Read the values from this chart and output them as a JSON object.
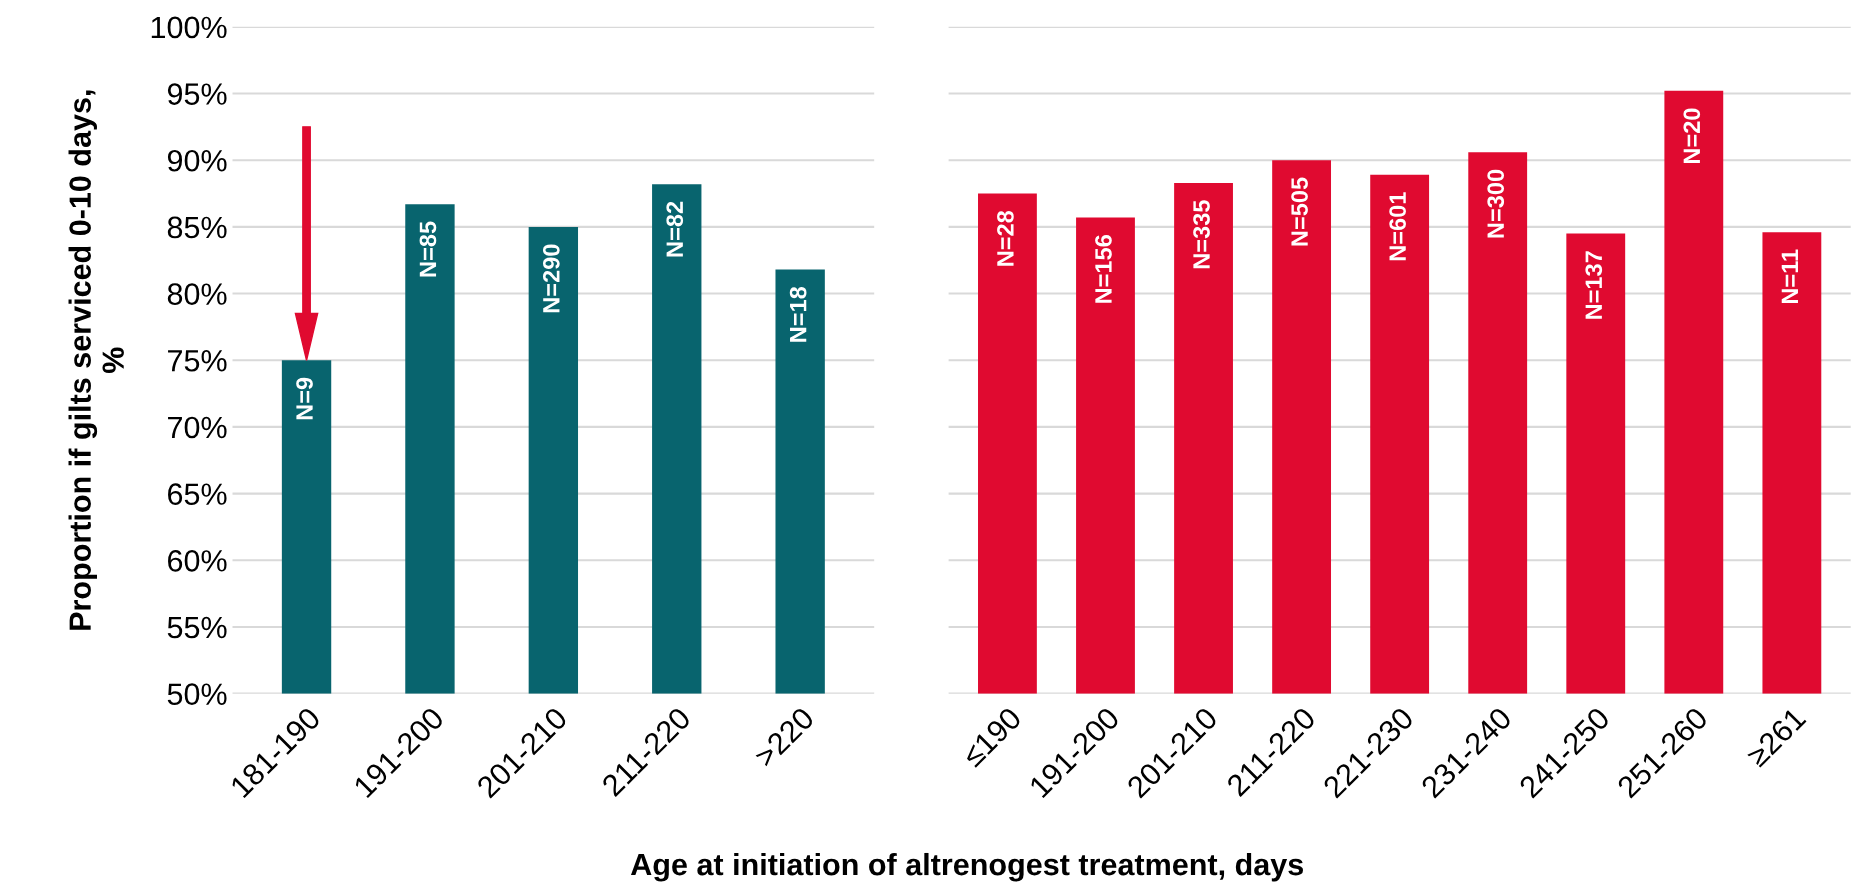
{
  "chart_data": [
    {
      "type": "bar",
      "ylabel": "Proportion if gilts serviced 0-10 days,\n%",
      "xlabel": "Age at initiation of altrenogest treatment, days",
      "categories": [
        "181-190",
        "191-200",
        "201-210",
        "211-220",
        ">220"
      ],
      "values": [
        75.0,
        86.7,
        85.0,
        88.2,
        81.8
      ],
      "color": "#08646e",
      "annotations": [
        {
          "text": "N=9",
          "x": "181-190",
          "y": 75.0
        },
        {
          "text": "N=85",
          "x": "191-200",
          "y": 86.7
        },
        {
          "text": "N=290",
          "x": "201-210",
          "y": 85.0
        },
        {
          "text": "N=82",
          "x": "211-220",
          "y": 88.2
        },
        {
          "text": "N=18",
          "x": ">220",
          "y": 81.8
        }
      ],
      "ylim": [
        50,
        100
      ],
      "yticks": [
        {
          "value": 50,
          "label": "50%"
        },
        {
          "value": 55,
          "label": "55%"
        },
        {
          "value": 60,
          "label": "60%"
        },
        {
          "value": 65,
          "label": "65%"
        },
        {
          "value": 70,
          "label": "70%"
        },
        {
          "value": 75,
          "label": "75%"
        },
        {
          "value": 80,
          "label": "80%"
        },
        {
          "value": 85,
          "label": "85%"
        },
        {
          "value": 90,
          "label": "90%"
        },
        {
          "value": 95,
          "label": "95%"
        },
        {
          "value": 100,
          "label": "100%"
        }
      ],
      "grid": "y"
    },
    {
      "type": "bar",
      "categories": [
        "≤190",
        "191-200",
        "201-210",
        "211-220",
        "221-230",
        "231-240",
        "241-250",
        "251-260",
        "≥261"
      ],
      "values": [
        87.5,
        85.7,
        88.3,
        90.0,
        88.9,
        90.6,
        84.5,
        95.2,
        84.6
      ],
      "color": "#e00a30",
      "annotations": [
        {
          "text": "N=28",
          "x": "≤190",
          "y": 87.5
        },
        {
          "text": "N=156",
          "x": "191-200",
          "y": 85.7
        },
        {
          "text": "N=335",
          "x": "201-210",
          "y": 88.3
        },
        {
          "text": "N=505",
          "x": "211-220",
          "y": 90.0
        },
        {
          "text": "N=601",
          "x": "221-230",
          "y": 88.9
        },
        {
          "text": "N=300",
          "x": "231-240",
          "y": 90.6
        },
        {
          "text": "N=137",
          "x": "241-250",
          "y": 84.5
        },
        {
          "text": "N=20",
          "x": "251-260",
          "y": 95.2
        },
        {
          "text": "N=11",
          "x": "≥261",
          "y": 84.6
        }
      ],
      "ylim": [
        50,
        100
      ],
      "yticks": [
        {
          "value": 50,
          "label": null
        },
        {
          "value": 55,
          "label": null
        },
        {
          "value": 60,
          "label": null
        },
        {
          "value": 65,
          "label": null
        },
        {
          "value": 70,
          "label": null
        },
        {
          "value": 75,
          "label": null
        },
        {
          "value": 80,
          "label": null
        },
        {
          "value": 85,
          "label": null
        },
        {
          "value": 90,
          "label": null
        },
        {
          "value": 95,
          "label": null
        },
        {
          "value": 100,
          "label": null
        }
      ],
      "grid": "y",
      "tick_labels": "x"
    }
  ]
}
